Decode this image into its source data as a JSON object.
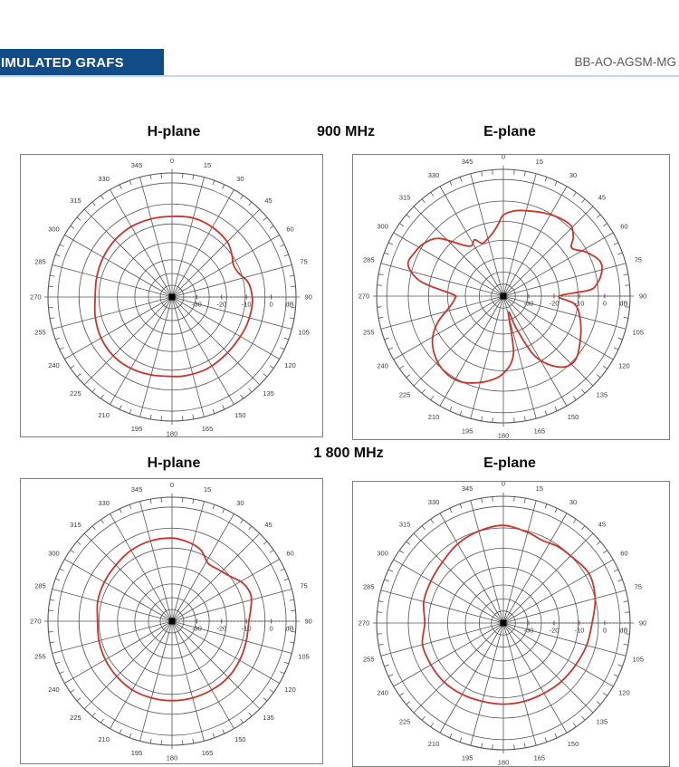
{
  "header": {
    "bar_label": "IMULATED GRAFS",
    "doc_code": "BB-AO-AGSM-MG"
  },
  "sections": [
    {
      "freq": "900 MHz",
      "left": "H-plane",
      "right": "E-plane"
    },
    {
      "freq": "1 800 MHz",
      "left": "H-plane",
      "right": "E-plane"
    }
  ],
  "colors": {
    "bar": "#114c86",
    "rule": "#c5d9ed",
    "doc_code": "#595959",
    "grid": "#555555",
    "labels": "#3a3a3a",
    "curve": "#c8352c",
    "box_border": "#7f7f7f",
    "center_marker": "#000000"
  },
  "polar_axis": {
    "angle_step_deg": 15,
    "angle_labels": [
      "0",
      "15",
      "30",
      "45",
      "60",
      "75",
      "90",
      "105",
      "120",
      "135",
      "150",
      "165",
      "180",
      "195",
      "210",
      "225",
      "240",
      "255",
      "270",
      "285",
      "300",
      "315",
      "330",
      "345"
    ],
    "radial_labels": [
      {
        "text": "-30",
        "f": 0.2
      },
      {
        "text": "-20",
        "f": 0.4
      },
      {
        "text": "-10",
        "f": 0.6
      },
      {
        "text": "0",
        "f": 0.8
      }
    ],
    "unit_label": "dB",
    "unit_label_f": 0.95,
    "range_db": [
      -40,
      10
    ],
    "circle_fractions": [
      0.095,
      0.19,
      0.3,
      0.44,
      0.59,
      0.75,
      0.92,
      1.0
    ]
  },
  "chart_data": [
    {
      "type": "polar-line",
      "name": "H-plane 900 MHz",
      "angles_deg": [
        0,
        15,
        30,
        45,
        55,
        62,
        70,
        78,
        85,
        95,
        110,
        125,
        140,
        155,
        170,
        180,
        195,
        210,
        225,
        240,
        255,
        270,
        285,
        300,
        315,
        330,
        345
      ],
      "gain_db": [
        -7.5,
        -7,
        -7.5,
        -8.5,
        -10.5,
        -12,
        -11.5,
        -9,
        -8,
        -7.5,
        -7.8,
        -8.3,
        -8.2,
        -7.8,
        -7.8,
        -8,
        -7.5,
        -6.8,
        -6.5,
        -7,
        -8,
        -9,
        -8.6,
        -8,
        -7.5,
        -7.2,
        -7.4
      ]
    },
    {
      "type": "polar-line",
      "name": "E-plane 900 MHz",
      "angles_deg": [
        0,
        8,
        16,
        26,
        36,
        44,
        50,
        55,
        62,
        70,
        76,
        82,
        86,
        90,
        96,
        104,
        118,
        132,
        142,
        152,
        158,
        163,
        170,
        180,
        192,
        205,
        215,
        226,
        238,
        248,
        260,
        268,
        272,
        280,
        288,
        296,
        304,
        312,
        322,
        328,
        333,
        338,
        345,
        351,
        356
      ],
      "gain_db": [
        -8,
        -6,
        -5,
        -3.5,
        -2,
        -1.5,
        -4,
        -7,
        -3,
        0.5,
        0,
        -2.5,
        -6,
        -18,
        -12,
        -9,
        -5.5,
        -2,
        -4.5,
        -13,
        -26,
        -33,
        -17,
        -9.5,
        -5.5,
        -2.5,
        -2,
        -3.5,
        -7,
        -12,
        -19,
        -21,
        -20,
        -7,
        -0.5,
        -1,
        -2.5,
        -6,
        -14.5,
        -16.5,
        -15,
        -17.5,
        -16.5,
        -14.5,
        -11.5
      ]
    },
    {
      "type": "polar-line",
      "name": "H-plane 1800 MHz",
      "angles_deg": [
        0,
        12,
        22,
        32,
        42,
        52,
        62,
        72,
        82,
        90,
        105,
        120,
        135,
        150,
        165,
        180,
        195,
        210,
        225,
        240,
        255,
        270,
        285,
        300,
        315,
        330,
        345
      ],
      "gain_db": [
        -6.5,
        -7.5,
        -9,
        -12.5,
        -12,
        -10.5,
        -7.5,
        -6.5,
        -8,
        -9,
        -9,
        -8.5,
        -8,
        -8,
        -8,
        -8,
        -8,
        -8,
        -8.5,
        -9,
        -9.5,
        -10,
        -9,
        -8.5,
        -8,
        -7,
        -6.5
      ]
    },
    {
      "type": "polar-line",
      "name": "E-plane 1800 MHz",
      "angles_deg": [
        0,
        15,
        25,
        35,
        45,
        60,
        75,
        90,
        105,
        120,
        135,
        150,
        165,
        180,
        195,
        210,
        225,
        240,
        255,
        270,
        285,
        300,
        315,
        330,
        345
      ],
      "gain_db": [
        -1.5,
        -3,
        -4,
        -3,
        -2.5,
        -1,
        -2.5,
        -5,
        -6,
        -7,
        -7.5,
        -8,
        -8,
        -8,
        -8,
        -7.5,
        -7,
        -7,
        -7,
        -9,
        -7.5,
        -7,
        -6,
        -4,
        -2.5
      ]
    }
  ]
}
